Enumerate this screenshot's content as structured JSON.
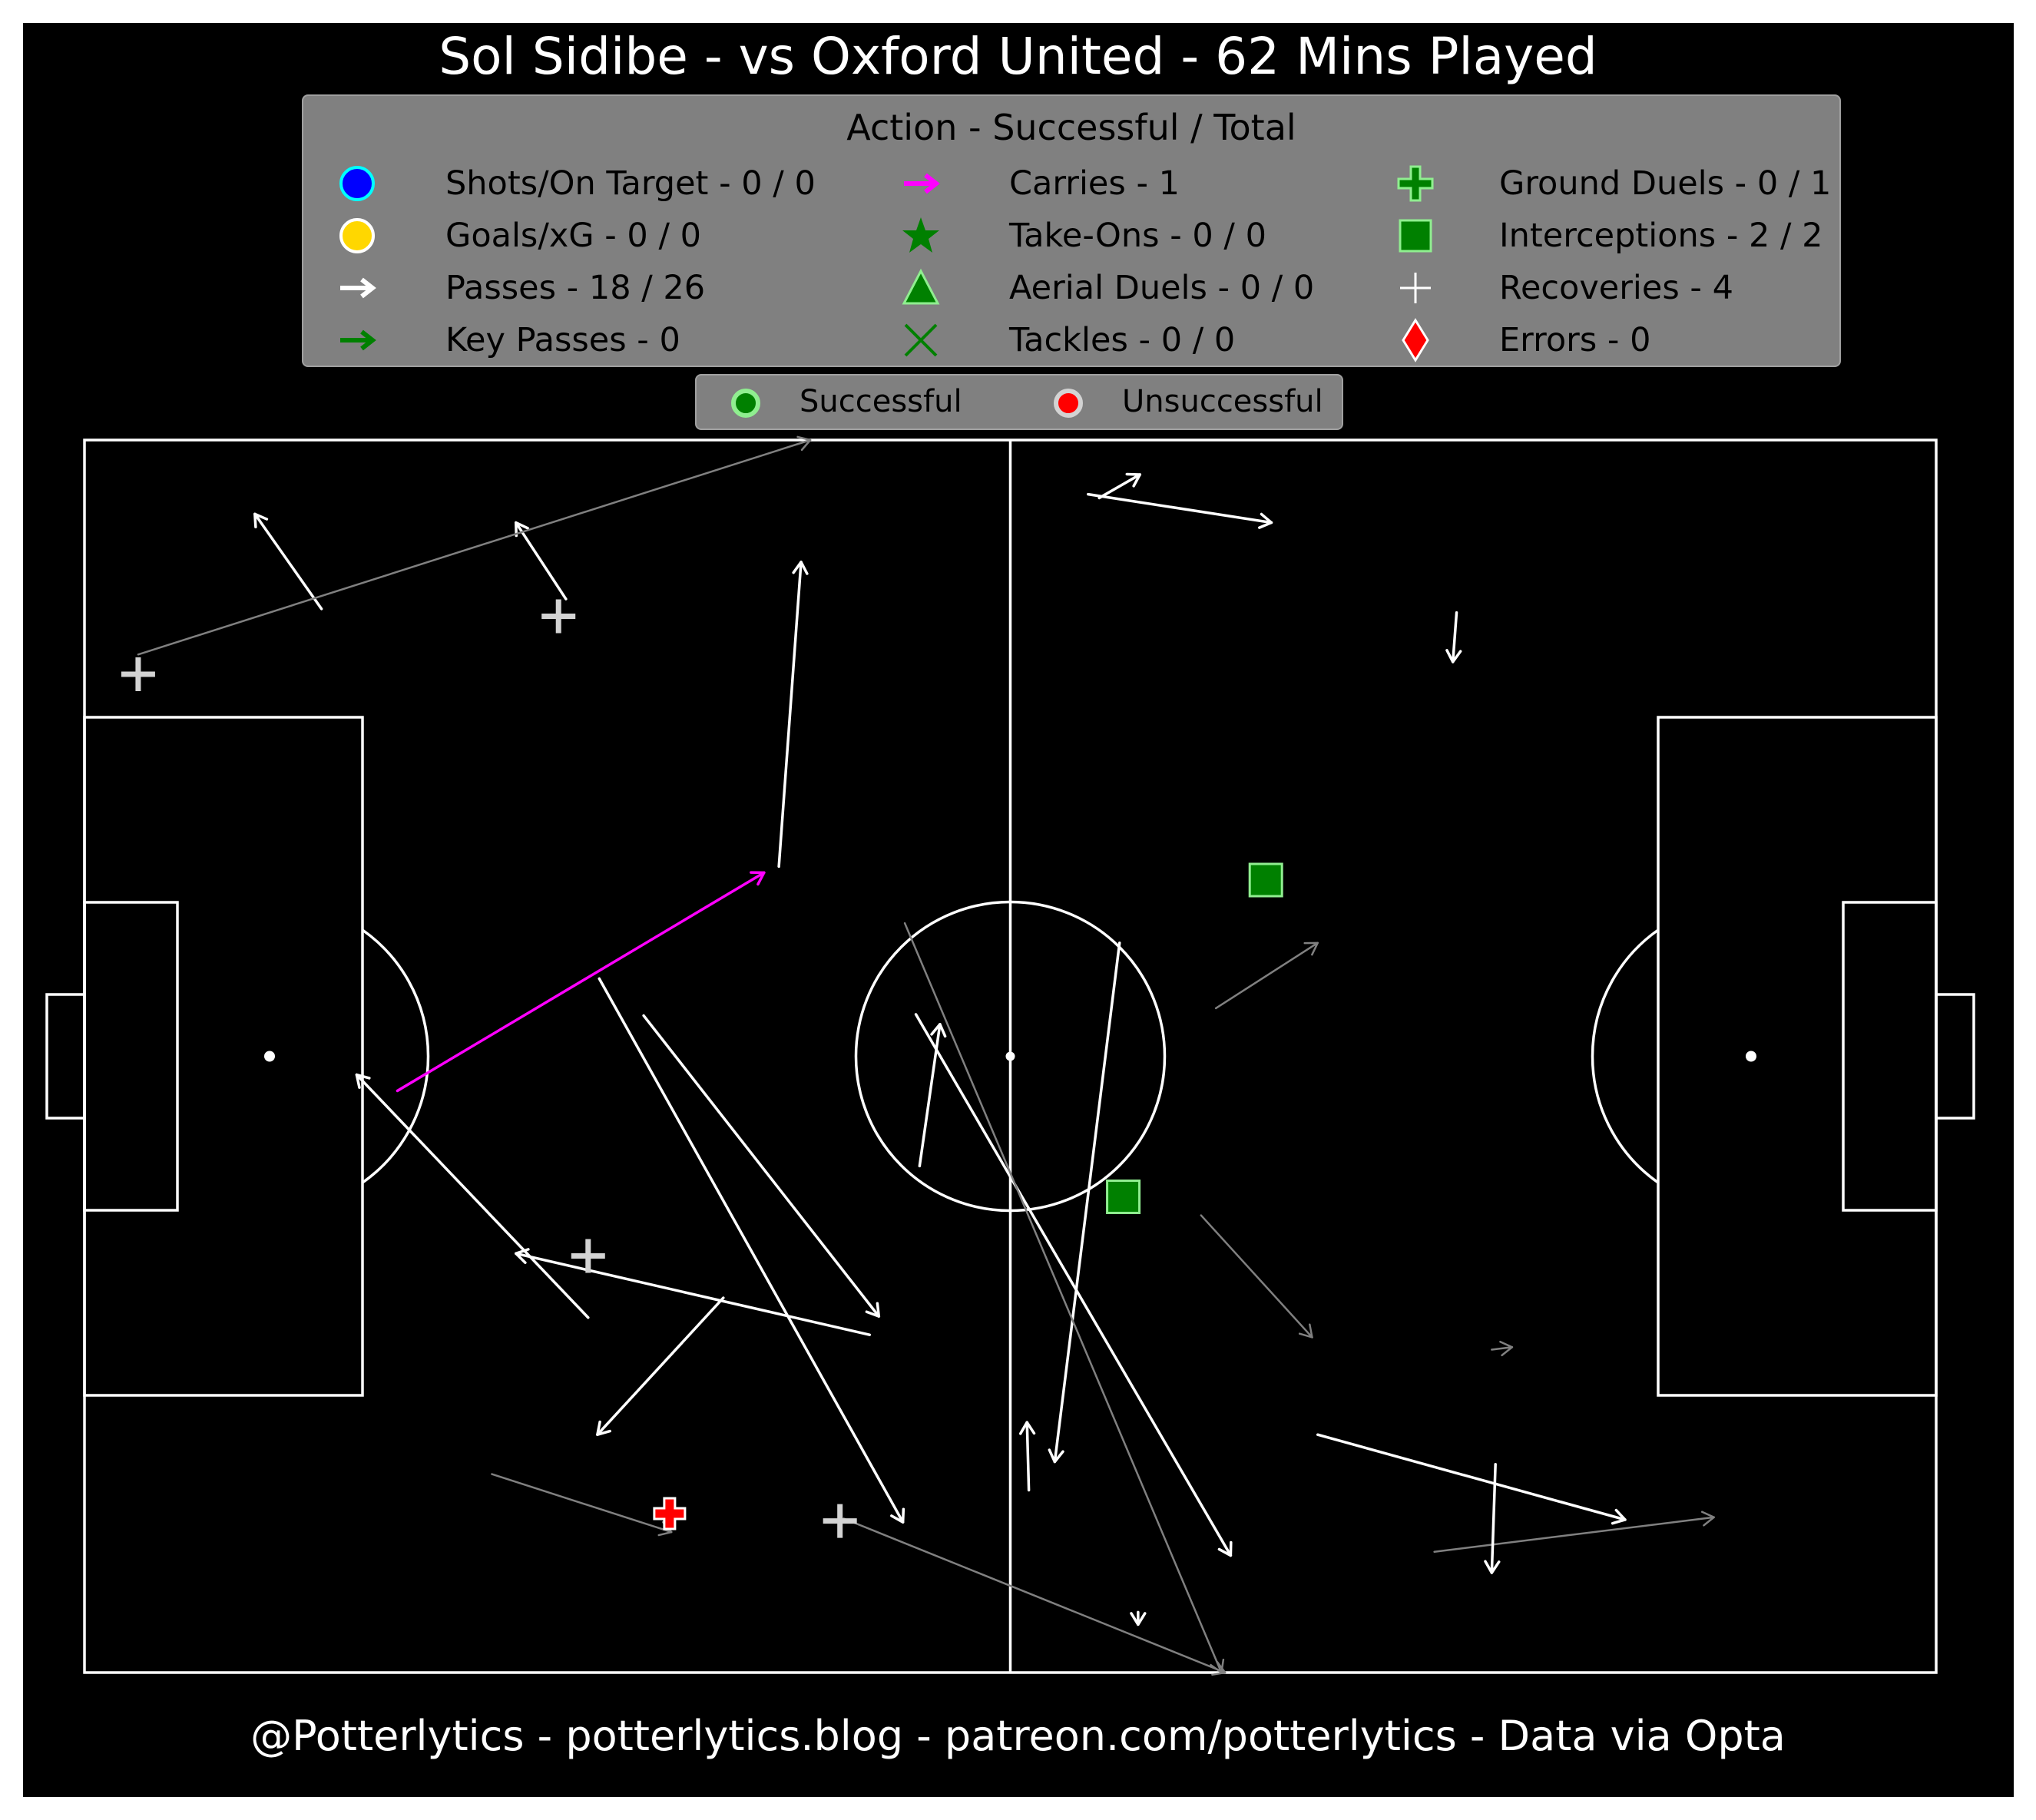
{
  "title": "Sol Sidibe - vs Oxford United - 62 Mins Played",
  "footer": "@Potterlytics - potterlytics.blog - patreon.com/potterlytics - Data via Opta",
  "legend": {
    "title": "Action - Successful / Total",
    "items": [
      {
        "label": "Shots/On Target - 0 / 0",
        "icon": "blue-circle-icon",
        "color": "#0000ff"
      },
      {
        "label": "Goals/xG - 0 / 0",
        "icon": "gold-circle-icon",
        "color": "#ffd700"
      },
      {
        "label": "Passes - 18 / 26",
        "icon": "white-arrow-icon",
        "color": "#ffffff"
      },
      {
        "label": "Key Passes - 0",
        "icon": "green-arrow-icon",
        "color": "#008000"
      },
      {
        "label": "Carries - 1",
        "icon": "magenta-arrow-icon",
        "color": "#ff00ff"
      },
      {
        "label": "Take-Ons - 0 / 0",
        "icon": "star-icon",
        "color": "#008000"
      },
      {
        "label": "Aerial Duels - 0 / 0",
        "icon": "triangle-icon",
        "color": "#008000"
      },
      {
        "label": "Tackles - 0 / 0",
        "icon": "x-cross-icon",
        "color": "#008000"
      },
      {
        "label": "Ground Duels - 0 / 1",
        "icon": "plus-filled-icon",
        "color": "#008000"
      },
      {
        "label": "Interceptions - 2 / 2",
        "icon": "square-icon",
        "color": "#008000"
      },
      {
        "label": "Recoveries - 4",
        "icon": "thin-plus-icon",
        "color": "#ffffff"
      },
      {
        "label": "Errors - 0",
        "icon": "diamond-icon",
        "color": "#ff0000"
      }
    ]
  },
  "outcome_legend": {
    "successful": "Successful",
    "unsuccessful": "Unsuccessful",
    "successful_color": "#008000",
    "unsuccessful_color": "#ff0000"
  },
  "colors": {
    "background": "#000000",
    "pitch_lines": "#ffffff",
    "pass_success": "#ffffff",
    "pass_fail": "#808080",
    "carry": "#ff00ff",
    "interception": "#008000",
    "duel_fail": "#ff0000",
    "recovery": "#d3d3d3"
  },
  "chart_data": {
    "type": "scatter",
    "pitch": {
      "length": 100,
      "width": 100,
      "attacking_direction": "left-to-right"
    },
    "passes": [
      {
        "x": 12.8,
        "y": 86.3,
        "end_x": 9.2,
        "end_y": 94.0,
        "outcome": "successful"
      },
      {
        "x": 26.0,
        "y": 87.1,
        "end_x": 23.3,
        "end_y": 93.3,
        "outcome": "successful"
      },
      {
        "x": 2.9,
        "y": 82.6,
        "end_x": 39.2,
        "end_y": 100.0,
        "outcome": "unsuccessful"
      },
      {
        "x": 37.5,
        "y": 65.4,
        "end_x": 38.7,
        "end_y": 90.1,
        "outcome": "successful"
      },
      {
        "x": 55.9,
        "y": 59.2,
        "end_x": 52.4,
        "end_y": 17.1,
        "outcome": "successful"
      },
      {
        "x": 45.1,
        "y": 41.1,
        "end_x": 46.2,
        "end_y": 52.6,
        "outcome": "successful"
      },
      {
        "x": 27.2,
        "y": 28.8,
        "end_x": 14.7,
        "end_y": 48.5,
        "outcome": "successful"
      },
      {
        "x": 42.4,
        "y": 27.4,
        "end_x": 23.3,
        "end_y": 34.0,
        "outcome": "successful"
      },
      {
        "x": 34.5,
        "y": 30.4,
        "end_x": 27.7,
        "end_y": 19.3,
        "outcome": "successful"
      },
      {
        "x": 30.2,
        "y": 53.3,
        "end_x": 42.9,
        "end_y": 28.9,
        "outcome": "successful"
      },
      {
        "x": 27.8,
        "y": 56.3,
        "end_x": 44.2,
        "end_y": 12.2,
        "outcome": "successful"
      },
      {
        "x": 44.9,
        "y": 53.4,
        "end_x": 61.9,
        "end_y": 9.5,
        "outcome": "successful"
      },
      {
        "x": 44.3,
        "y": 60.8,
        "end_x": 61.4,
        "end_y": 0.0,
        "outcome": "unsuccessful"
      },
      {
        "x": 22.0,
        "y": 16.1,
        "end_x": 31.7,
        "end_y": 11.4,
        "outcome": "unsuccessful"
      },
      {
        "x": 41.0,
        "y": 12.5,
        "end_x": 61.6,
        "end_y": 0.0,
        "outcome": "unsuccessful"
      },
      {
        "x": 56.9,
        "y": 4.9,
        "end_x": 56.9,
        "end_y": 3.9,
        "outcome": "successful"
      },
      {
        "x": 54.8,
        "y": 95.3,
        "end_x": 57.0,
        "end_y": 97.2,
        "outcome": "successful"
      },
      {
        "x": 54.2,
        "y": 95.6,
        "end_x": 64.1,
        "end_y": 93.3,
        "outcome": "successful"
      },
      {
        "x": 74.1,
        "y": 86.0,
        "end_x": 73.9,
        "end_y": 82.0,
        "outcome": "successful"
      },
      {
        "x": 61.1,
        "y": 53.9,
        "end_x": 66.6,
        "end_y": 59.2,
        "outcome": "unsuccessful"
      },
      {
        "x": 60.3,
        "y": 37.1,
        "end_x": 66.3,
        "end_y": 27.2,
        "outcome": "unsuccessful"
      },
      {
        "x": 76.0,
        "y": 26.2,
        "end_x": 77.1,
        "end_y": 26.4,
        "outcome": "unsuccessful"
      },
      {
        "x": 66.6,
        "y": 19.3,
        "end_x": 83.2,
        "end_y": 12.4,
        "outcome": "successful"
      },
      {
        "x": 72.9,
        "y": 9.8,
        "end_x": 88.0,
        "end_y": 12.6,
        "outcome": "unsuccessful"
      },
      {
        "x": 76.2,
        "y": 16.9,
        "end_x": 76.0,
        "end_y": 8.1,
        "outcome": "successful"
      },
      {
        "x": 51.0,
        "y": 14.8,
        "end_x": 50.9,
        "end_y": 20.3,
        "outcome": "successful"
      }
    ],
    "carries": [
      {
        "x": 16.9,
        "y": 47.2,
        "end_x": 36.7,
        "end_y": 64.9
      }
    ],
    "recoveries": [
      {
        "x": 2.9,
        "y": 81.0
      },
      {
        "x": 25.6,
        "y": 85.7
      },
      {
        "x": 27.2,
        "y": 33.8
      },
      {
        "x": 40.8,
        "y": 12.3
      }
    ],
    "interceptions": [
      {
        "x": 63.8,
        "y": 64.3
      },
      {
        "x": 56.1,
        "y": 38.6
      }
    ],
    "ground_duels": [
      {
        "x": 31.6,
        "y": 12.9,
        "outcome": "unsuccessful"
      }
    ]
  }
}
